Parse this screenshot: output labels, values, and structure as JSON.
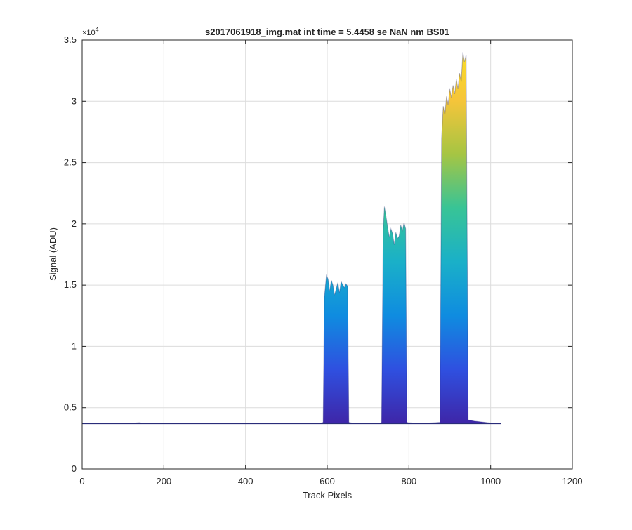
{
  "chart_data": {
    "type": "area",
    "title": "s2017061918_img.mat int time = 5.4458 se  NaN nm BS01",
    "xlabel": "Track Pixels",
    "ylabel": "Signal (ADU)",
    "xlim": [
      0,
      1200
    ],
    "ylim": [
      0,
      35000
    ],
    "xticks": [
      0,
      200,
      400,
      600,
      800,
      1000,
      1200
    ],
    "xtick_labels": [
      "0",
      "200",
      "400",
      "600",
      "800",
      "1000",
      "1200"
    ],
    "yticks": [
      0,
      5000,
      10000,
      15000,
      20000,
      25000,
      30000,
      35000
    ],
    "ytick_labels": [
      "0",
      "0.5",
      "1",
      "1.5",
      "2",
      "2.5",
      "3",
      "3.5"
    ],
    "y_exponent_base": "×10",
    "y_exponent_power": "4",
    "grid": true,
    "colormap_stops": [
      "#3e26a8",
      "#2f50e0",
      "#0f8ce0",
      "#1ab0c8",
      "#38c496",
      "#a6c543",
      "#f6c53a",
      "#f9e025"
    ],
    "outline_color": "#2a2d7a",
    "series": [
      {
        "name": "spectrum",
        "x": [
          0,
          60,
          130,
          140,
          150,
          300,
          500,
          585,
          590,
          593,
          598,
          602,
          606,
          610,
          614,
          618,
          622,
          626,
          630,
          634,
          638,
          642,
          646,
          650,
          653,
          660,
          700,
          730,
          733,
          737,
          740,
          744,
          748,
          752,
          756,
          760,
          764,
          768,
          772,
          776,
          780,
          784,
          788,
          792,
          795,
          798,
          820,
          850,
          876,
          880,
          884,
          888,
          892,
          896,
          900,
          904,
          908,
          912,
          916,
          920,
          924,
          928,
          932,
          936,
          940,
          945,
          960,
          1000,
          1020,
          1025
        ],
        "y": [
          3700,
          3720,
          3750,
          3780,
          3720,
          3700,
          3700,
          3750,
          3800,
          14000,
          15800,
          15500,
          14500,
          15400,
          15000,
          14200,
          14700,
          15200,
          14400,
          15300,
          15000,
          14800,
          15100,
          14900,
          3800,
          3750,
          3700,
          3750,
          3800,
          19500,
          21400,
          20600,
          19700,
          18900,
          19600,
          19200,
          18300,
          19300,
          18800,
          19000,
          19900,
          19400,
          20100,
          19600,
          3800,
          3780,
          3720,
          3750,
          3800,
          27000,
          29600,
          28900,
          30400,
          29700,
          31000,
          30300,
          31300,
          30600,
          31800,
          31000,
          32300,
          31600,
          34000,
          33200,
          33800,
          4000,
          3900,
          3750,
          3700,
          3700
        ]
      }
    ]
  }
}
